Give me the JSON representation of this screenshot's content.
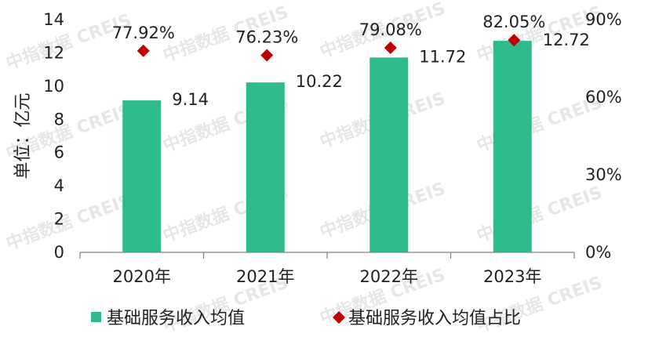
{
  "chart_data": {
    "type": "bar",
    "categories": [
      "2020年",
      "2021年",
      "2022年",
      "2023年"
    ],
    "series": [
      {
        "name": "基础服务收入均值",
        "axis": "left",
        "values": [
          9.14,
          10.22,
          11.72,
          12.72
        ],
        "value_labels": [
          "9.14",
          "10.22",
          "11.72",
          "12.72"
        ],
        "color": "#2dbb8e"
      },
      {
        "name": "基础服务收入均值占比",
        "axis": "right",
        "type": "scatter",
        "marker": "diamond",
        "values": [
          77.92,
          76.23,
          79.08,
          82.05
        ],
        "value_labels": [
          "77.92%",
          "76.23%",
          "79.08%",
          "82.05%"
        ],
        "color": "#c00000"
      }
    ],
    "ylabel": "单位：亿元",
    "ylim": [
      0,
      14
    ],
    "yticks": [
      "0",
      "2",
      "4",
      "6",
      "8",
      "10",
      "12",
      "14"
    ],
    "y2lim": [
      0,
      90
    ],
    "y2ticks": [
      "0%",
      "30%",
      "60%",
      "90%"
    ],
    "grid": false,
    "legend_position": "bottom"
  },
  "watermark": {
    "text": "中指数据 CREIS"
  }
}
